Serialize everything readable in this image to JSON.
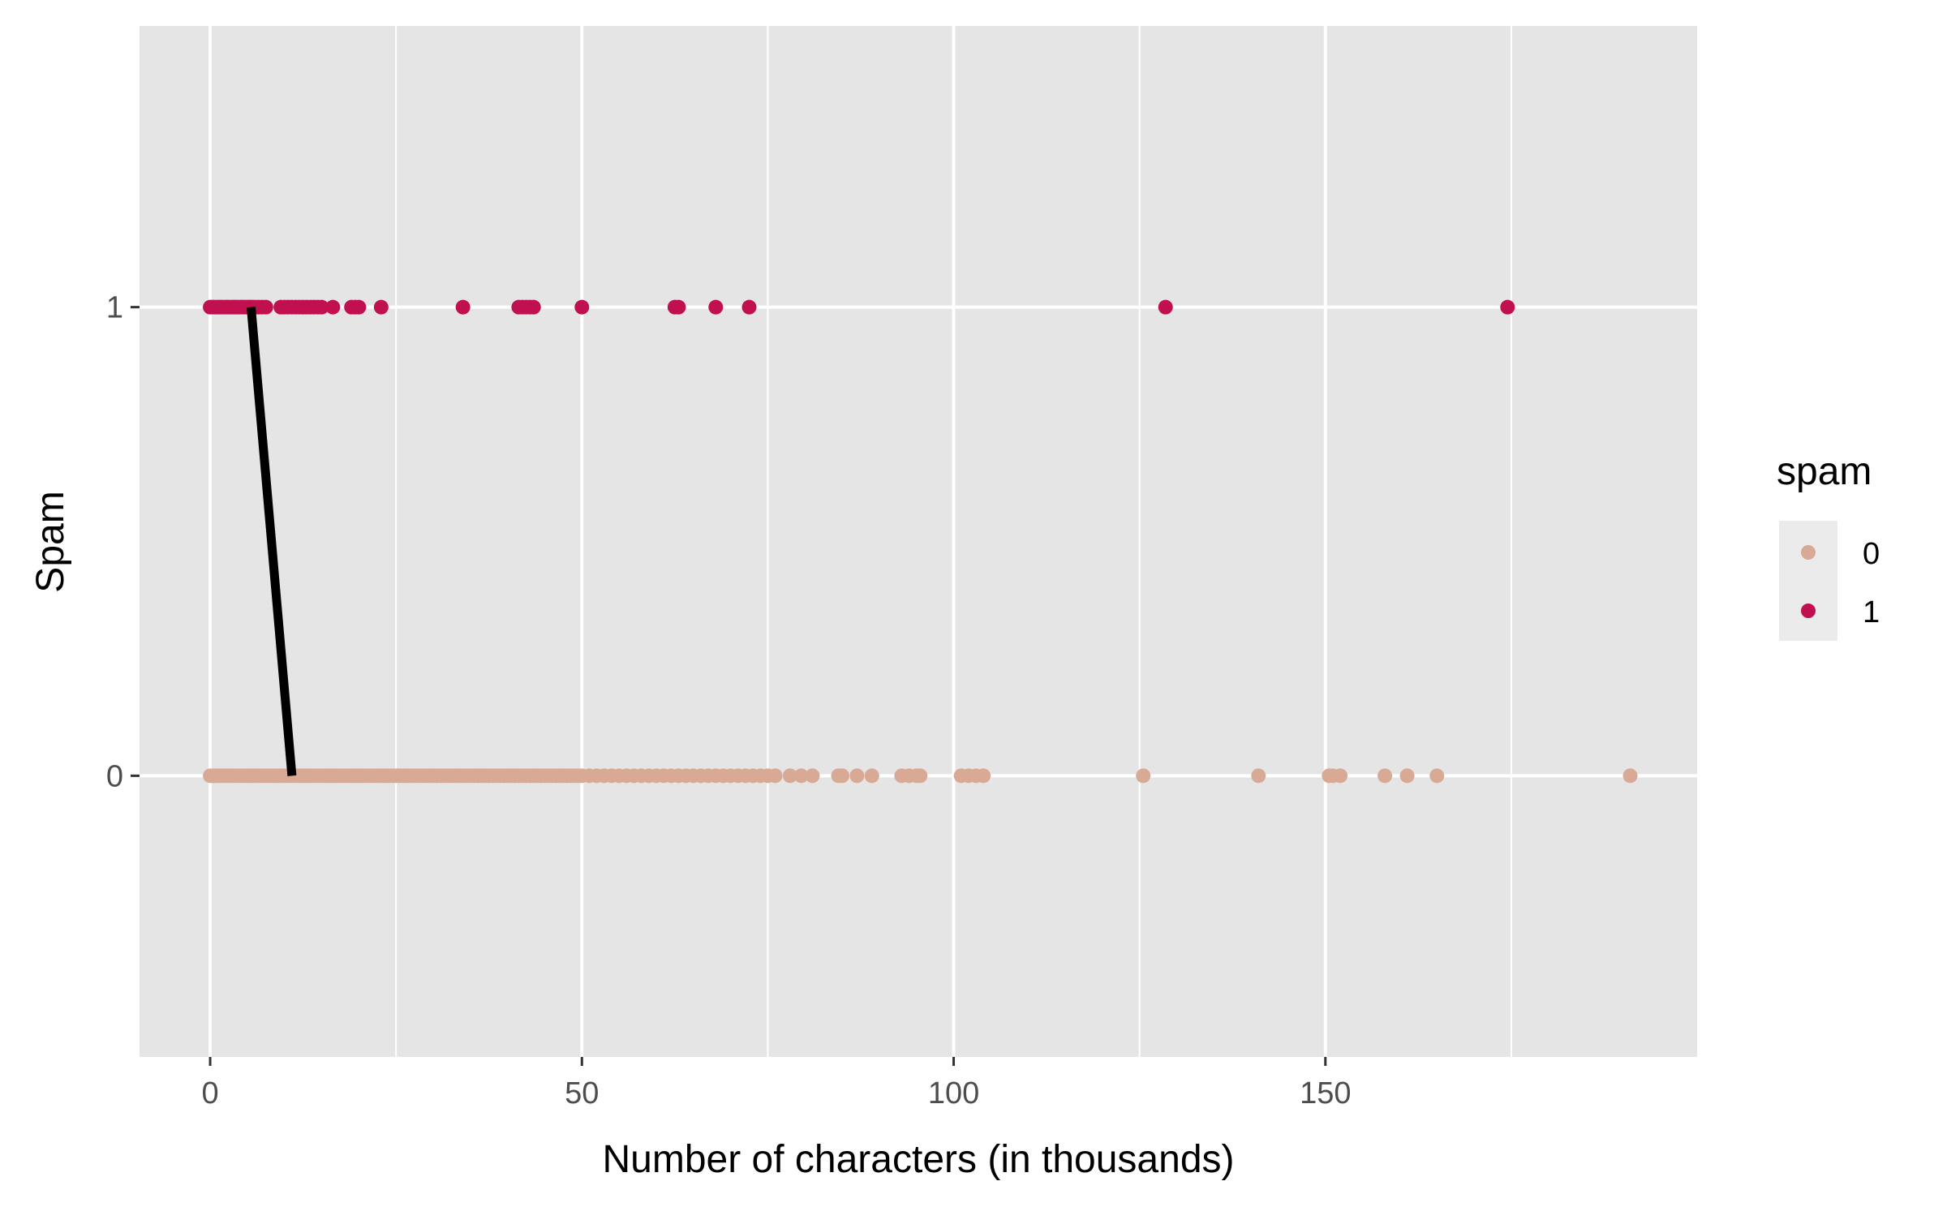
{
  "chart_data": {
    "type": "scatter",
    "title": "",
    "xlabel": "Number of characters (in thousands)",
    "ylabel": "Spam",
    "xlim": [
      -9.5,
      200
    ],
    "ylim": [
      -0.6,
      1.6
    ],
    "x_ticks": [
      0,
      50,
      100,
      150
    ],
    "x_tick_labels": [
      "0",
      "50",
      "100",
      "150"
    ],
    "x_minor_gridlines": [
      25,
      75,
      125,
      175
    ],
    "y_ticks": [
      0,
      1
    ],
    "y_tick_labels": [
      "0",
      "1"
    ],
    "grid": true,
    "panel_background": "#e5e5e5",
    "legend": {
      "title": "spam",
      "position": "right",
      "entries": [
        {
          "label": "0",
          "color": "#d8a994"
        },
        {
          "label": "1",
          "color": "#c0104f"
        }
      ]
    },
    "series": [
      {
        "name": "0",
        "color": "#d8a994",
        "y": 0,
        "x": [
          0,
          0.3,
          0.6,
          1,
          1.4,
          1.8,
          2.2,
          2.6,
          3,
          3.5,
          4,
          4.5,
          5,
          5.5,
          6,
          6.5,
          7,
          7.5,
          8,
          8.5,
          9,
          9.5,
          10,
          10.5,
          11,
          11.5,
          12,
          12.5,
          13,
          13.5,
          14,
          14.5,
          15,
          15.5,
          16,
          16.5,
          17,
          17.5,
          18,
          18.5,
          19,
          19.5,
          20,
          20.5,
          21,
          21.5,
          22,
          22.5,
          23,
          23.5,
          24,
          24.5,
          25,
          25.5,
          26,
          26.5,
          27,
          27.5,
          28,
          28.5,
          29,
          29.5,
          30,
          30.5,
          31,
          31.5,
          32,
          32.5,
          33,
          33.5,
          34,
          34.5,
          35,
          35.5,
          36,
          36.5,
          37,
          37.5,
          38,
          38.5,
          39,
          39.5,
          40,
          40.5,
          41,
          41.5,
          42,
          42.5,
          43,
          43.5,
          44,
          44.5,
          45,
          45.5,
          46,
          46.5,
          47,
          47.5,
          48,
          48.5,
          49,
          49.5,
          50,
          51,
          52,
          53,
          54,
          55,
          56,
          57,
          58,
          59,
          60,
          61,
          62,
          63,
          64,
          65,
          66,
          67,
          68,
          69,
          70,
          71,
          72,
          73,
          74,
          75,
          76,
          78,
          79.5,
          81,
          84.5,
          85,
          87,
          89,
          93,
          94,
          95,
          95.5,
          101,
          102,
          103,
          104,
          125.5,
          141,
          150.5,
          151,
          152,
          158,
          161,
          165,
          191
        ]
      },
      {
        "name": "1",
        "color": "#c0104f",
        "y": 1,
        "x": [
          0,
          0.3,
          0.6,
          1,
          1.3,
          1.6,
          2,
          2.3,
          2.6,
          3,
          3.3,
          3.6,
          4,
          4.3,
          4.6,
          5,
          5.3,
          5.6,
          6,
          6.5,
          7,
          7.5,
          9.5,
          10,
          10.5,
          11,
          11.5,
          12,
          12.5,
          13,
          13.5,
          14,
          14.5,
          15,
          16.5,
          19,
          19.5,
          20,
          23,
          34,
          41.5,
          42,
          42.5,
          43,
          43.5,
          50,
          62.5,
          63,
          68,
          72.5,
          128.5,
          174.5
        ]
      }
    ],
    "line": {
      "color": "#000000",
      "points": [
        [
          5.5,
          1
        ],
        [
          11,
          0
        ]
      ]
    }
  }
}
